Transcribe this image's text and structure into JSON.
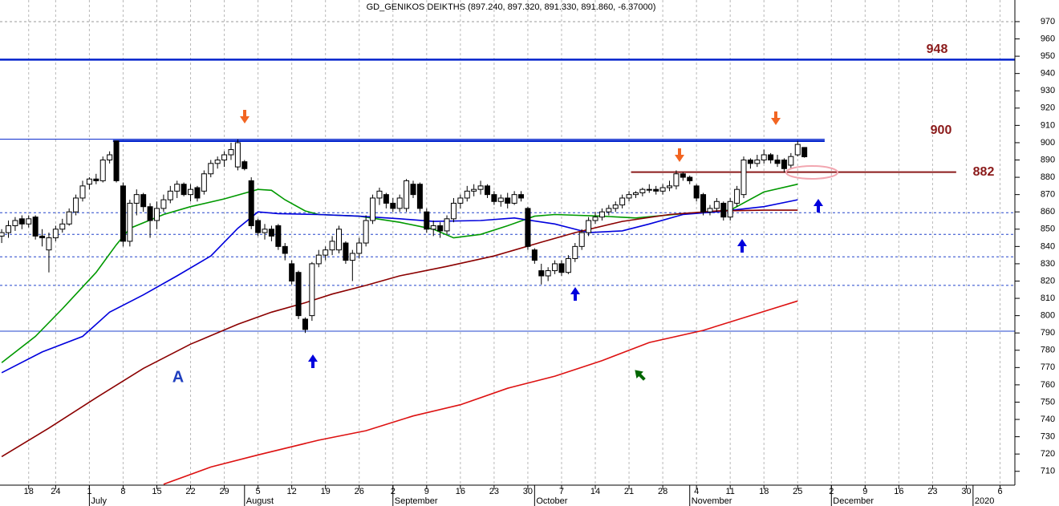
{
  "chart_data": {
    "type": "candlestick",
    "title": "GD_GENIKOS DEIKTHS (897.240, 897.320, 891.330, 891.860, -6.37000)",
    "xlim": [
      -0.25,
      150.2
    ],
    "ylim": [
      702,
      982.5
    ],
    "yticks": [
      710,
      720,
      730,
      740,
      750,
      760,
      770,
      780,
      790,
      800,
      810,
      820,
      830,
      840,
      850,
      860,
      870,
      880,
      890,
      900,
      910,
      920,
      930,
      940,
      950,
      960,
      970
    ],
    "xticks": [
      {
        "value": 4,
        "label": "18"
      },
      {
        "value": 8,
        "label": "24"
      },
      {
        "value": 13,
        "label": "1"
      },
      {
        "value": 18,
        "label": "8"
      },
      {
        "value": 23,
        "label": "15"
      },
      {
        "value": 28,
        "label": "22"
      },
      {
        "value": 33,
        "label": "29"
      },
      {
        "value": 38,
        "label": "5"
      },
      {
        "value": 43,
        "label": "12"
      },
      {
        "value": 48,
        "label": "19"
      },
      {
        "value": 53,
        "label": "26"
      },
      {
        "value": 58,
        "label": "2"
      },
      {
        "value": 63,
        "label": "9"
      },
      {
        "value": 68,
        "label": "16"
      },
      {
        "value": 73,
        "label": "23"
      },
      {
        "value": 78,
        "label": "30"
      },
      {
        "value": 83,
        "label": "7"
      },
      {
        "value": 88,
        "label": "14"
      },
      {
        "value": 93,
        "label": "21"
      },
      {
        "value": 98,
        "label": "28"
      },
      {
        "value": 103,
        "label": "4"
      },
      {
        "value": 108,
        "label": "11"
      },
      {
        "value": 113,
        "label": "18"
      },
      {
        "value": 118,
        "label": "25"
      },
      {
        "value": 123,
        "label": "2"
      },
      {
        "value": 128,
        "label": "9"
      },
      {
        "value": 133,
        "label": "16"
      },
      {
        "value": 138,
        "label": "23"
      },
      {
        "value": 143,
        "label": "30"
      },
      {
        "value": 148,
        "label": "6"
      }
    ],
    "month_ticks": [
      {
        "value": 13,
        "label": "July"
      },
      {
        "value": 36,
        "label": "August"
      },
      {
        "value": 58,
        "label": "September"
      },
      {
        "value": 79,
        "label": "October"
      },
      {
        "value": 102,
        "label": "November"
      },
      {
        "value": 123,
        "label": "December"
      },
      {
        "value": 144,
        "label": "2020"
      }
    ],
    "grid": "vertical",
    "up_color": "#ffffff",
    "down_color": "#000000",
    "ohlc": [
      [
        846,
        850,
        842,
        848
      ],
      [
        848,
        855,
        845,
        852
      ],
      [
        852,
        857,
        849,
        855
      ],
      [
        856,
        858,
        850,
        853
      ],
      [
        853,
        858,
        851,
        856
      ],
      [
        857,
        858,
        844,
        846
      ],
      [
        846,
        850,
        840,
        845
      ],
      [
        838,
        848,
        825,
        845
      ],
      [
        845,
        852,
        843,
        850
      ],
      [
        850,
        856,
        848,
        853
      ],
      [
        853,
        862,
        852,
        860
      ],
      [
        860,
        870,
        858,
        868
      ],
      [
        868,
        878,
        866,
        875
      ],
      [
        876,
        880,
        873,
        879
      ],
      [
        879,
        882,
        876,
        878
      ],
      [
        878,
        892,
        877,
        890
      ],
      [
        890,
        895,
        888,
        893
      ],
      [
        901,
        901,
        877,
        878
      ],
      [
        875,
        877,
        840,
        843
      ],
      [
        843,
        867,
        840,
        865
      ],
      [
        865,
        873,
        858,
        870
      ],
      [
        870,
        871,
        860,
        863
      ],
      [
        863,
        865,
        845,
        855
      ],
      [
        855,
        866,
        850,
        862
      ],
      [
        862,
        870,
        860,
        867
      ],
      [
        867,
        875,
        865,
        872
      ],
      [
        872,
        878,
        868,
        876
      ],
      [
        876,
        877,
        869,
        870
      ],
      [
        870,
        876,
        866,
        873
      ],
      [
        874,
        875,
        866,
        868
      ],
      [
        872,
        884,
        870,
        882
      ],
      [
        882,
        890,
        880,
        888
      ],
      [
        888,
        892,
        885,
        890
      ],
      [
        890,
        895,
        886,
        893
      ],
      [
        893,
        900,
        890,
        896
      ],
      [
        886,
        902,
        884,
        900
      ],
      [
        889,
        890,
        884,
        885
      ],
      [
        878,
        880,
        850,
        852
      ],
      [
        855,
        856,
        846,
        848
      ],
      [
        848,
        853,
        844,
        850
      ],
      [
        850,
        852,
        843,
        846
      ],
      [
        852,
        853,
        838,
        840
      ],
      [
        840,
        842,
        832,
        836
      ],
      [
        830,
        832,
        818,
        820
      ],
      [
        825,
        826,
        798,
        800
      ],
      [
        798,
        799,
        790,
        792
      ],
      [
        800,
        831,
        797,
        830
      ],
      [
        830,
        838,
        828,
        835
      ],
      [
        835,
        840,
        832,
        838
      ],
      [
        838,
        846,
        835,
        843
      ],
      [
        838,
        852,
        836,
        850
      ],
      [
        842,
        843,
        830,
        832
      ],
      [
        832,
        838,
        820,
        836
      ],
      [
        836,
        845,
        833,
        842
      ],
      [
        842,
        858,
        840,
        855
      ],
      [
        855,
        870,
        853,
        868
      ],
      [
        868,
        874,
        864,
        872
      ],
      [
        870,
        871,
        862,
        865
      ],
      [
        865,
        868,
        860,
        862
      ],
      [
        862,
        870,
        860,
        868
      ],
      [
        862,
        879,
        860,
        878
      ],
      [
        876,
        878,
        868,
        870
      ],
      [
        876,
        877,
        860,
        862
      ],
      [
        860,
        862,
        848,
        850
      ],
      [
        850,
        855,
        846,
        852
      ],
      [
        852,
        854,
        845,
        849
      ],
      [
        849,
        858,
        847,
        856
      ],
      [
        856,
        868,
        854,
        865
      ],
      [
        865,
        870,
        862,
        868
      ],
      [
        868,
        875,
        866,
        872
      ],
      [
        872,
        876,
        869,
        873
      ],
      [
        873,
        878,
        870,
        875
      ],
      [
        875,
        876,
        868,
        870
      ],
      [
        870,
        872,
        864,
        866
      ],
      [
        866,
        870,
        863,
        868
      ],
      [
        868,
        871,
        862,
        865
      ],
      [
        865,
        872,
        864,
        870
      ],
      [
        870,
        872,
        866,
        868
      ],
      [
        862,
        863,
        838,
        840
      ],
      [
        838,
        839,
        830,
        832
      ],
      [
        826,
        830,
        818,
        823
      ],
      [
        823,
        828,
        820,
        826
      ],
      [
        826,
        832,
        824,
        830
      ],
      [
        830,
        832,
        823,
        825
      ],
      [
        825,
        835,
        824,
        833
      ],
      [
        833,
        842,
        831,
        840
      ],
      [
        840,
        850,
        838,
        848
      ],
      [
        848,
        857,
        846,
        855
      ],
      [
        855,
        860,
        853,
        857
      ],
      [
        857,
        862,
        855,
        860
      ],
      [
        860,
        864,
        858,
        862
      ],
      [
        862,
        866,
        860,
        864
      ],
      [
        864,
        870,
        862,
        868
      ],
      [
        868,
        872,
        866,
        870
      ],
      [
        870,
        872,
        868,
        871
      ],
      [
        871,
        874,
        869,
        873
      ],
      [
        873,
        876,
        871,
        873
      ],
      [
        873,
        875,
        870,
        872
      ],
      [
        872,
        876,
        870,
        874
      ],
      [
        874,
        878,
        872,
        875
      ],
      [
        875,
        884,
        873,
        882
      ],
      [
        882,
        883,
        878,
        880
      ],
      [
        880,
        881,
        876,
        878
      ],
      [
        875,
        876,
        866,
        868
      ],
      [
        870,
        871,
        858,
        860
      ],
      [
        860,
        864,
        858,
        862
      ],
      [
        862,
        868,
        860,
        866
      ],
      [
        865,
        866,
        855,
        857
      ],
      [
        857,
        868,
        855,
        866
      ],
      [
        865,
        875,
        863,
        873
      ],
      [
        870,
        892,
        868,
        890
      ],
      [
        890,
        891,
        885,
        888
      ],
      [
        888,
        893,
        886,
        890
      ],
      [
        890,
        896,
        888,
        893
      ],
      [
        893,
        894,
        888,
        890
      ],
      [
        890,
        893,
        886,
        888
      ],
      [
        890,
        891,
        883,
        885
      ],
      [
        887,
        894,
        885,
        892
      ],
      [
        893,
        901,
        892,
        899
      ],
      [
        897.24,
        897.32,
        891.33,
        891.86
      ]
    ],
    "lines": [
      {
        "color": "#009900",
        "x": [
          0,
          5,
          9,
          14,
          17,
          19,
          24,
          28,
          33,
          38,
          40,
          42,
          45,
          47,
          53,
          59,
          64,
          67,
          71,
          75,
          79,
          82,
          89,
          94,
          101,
          108,
          113,
          118
        ],
        "values": [
          772.8,
          788,
          804,
          825,
          841,
          850.5,
          858.5,
          863,
          867.5,
          873,
          872.5,
          867,
          860.5,
          858.5,
          857.5,
          854,
          850,
          845,
          847,
          852,
          857.5,
          858.5,
          857.5,
          856.5,
          859,
          861,
          871.5,
          876
        ]
      },
      {
        "color": "#0000dd",
        "x": [
          0,
          6,
          12,
          16,
          21,
          26,
          31,
          35,
          38,
          41,
          47,
          53,
          59,
          64,
          71,
          76,
          82,
          87,
          92,
          96,
          101,
          106,
          113,
          118
        ],
        "values": [
          767,
          779,
          788,
          802,
          812,
          823,
          834.5,
          850.5,
          860,
          859,
          858.5,
          857.5,
          856,
          854.5,
          855,
          856.5,
          853,
          848,
          849,
          853,
          858.5,
          860,
          863,
          867
        ]
      },
      {
        "color": "#8b0000",
        "x": [
          0,
          7,
          14,
          21,
          28,
          35,
          40,
          45,
          49,
          54,
          59,
          66,
          73,
          80,
          85,
          92,
          99,
          106,
          113,
          118
        ],
        "values": [
          718.5,
          735,
          752.5,
          769.5,
          783.5,
          795,
          802,
          807.5,
          812.5,
          817.5,
          823,
          828.5,
          834.5,
          842.5,
          848,
          854.5,
          858.5,
          860.5,
          861,
          861
        ]
      },
      {
        "color": "#dd1111",
        "x": [
          24,
          31,
          38,
          47,
          54,
          61,
          68,
          75,
          82,
          89,
          96,
          104,
          111,
          118
        ],
        "values": [
          702.5,
          712.5,
          719.5,
          728,
          733.5,
          742,
          748.5,
          758,
          765,
          774,
          784.5,
          791.5,
          800,
          808.5
        ]
      }
    ],
    "levels": [
      {
        "value": 948,
        "color": "#0022cc",
        "width": 2.5,
        "style": "solid"
      },
      {
        "value": 902,
        "color": "#0022cc",
        "width": 1,
        "style": "solid",
        "x": [
          -0.25,
          122
        ]
      },
      {
        "value": 901,
        "color": "#0022cc",
        "width": 2.5,
        "style": "solid",
        "x": [
          16.5,
          122
        ]
      },
      {
        "value": 883,
        "color": "#8b1a1a",
        "width": 2,
        "style": "solid",
        "x": [
          93.3,
          141.5
        ]
      },
      {
        "value": 859.5,
        "color": "#2244cc",
        "width": 1,
        "style": "dotted"
      },
      {
        "value": 847,
        "color": "#2244cc",
        "width": 1,
        "style": "dotted"
      },
      {
        "value": 834,
        "color": "#2244cc",
        "width": 1,
        "style": "dotted"
      },
      {
        "value": 817.5,
        "color": "#2244cc",
        "width": 1,
        "style": "dotted"
      },
      {
        "value": 791,
        "color": "#2244cc",
        "width": 1,
        "style": "solid"
      }
    ],
    "annotations": [
      "A",
      "948",
      "900",
      "882"
    ]
  }
}
